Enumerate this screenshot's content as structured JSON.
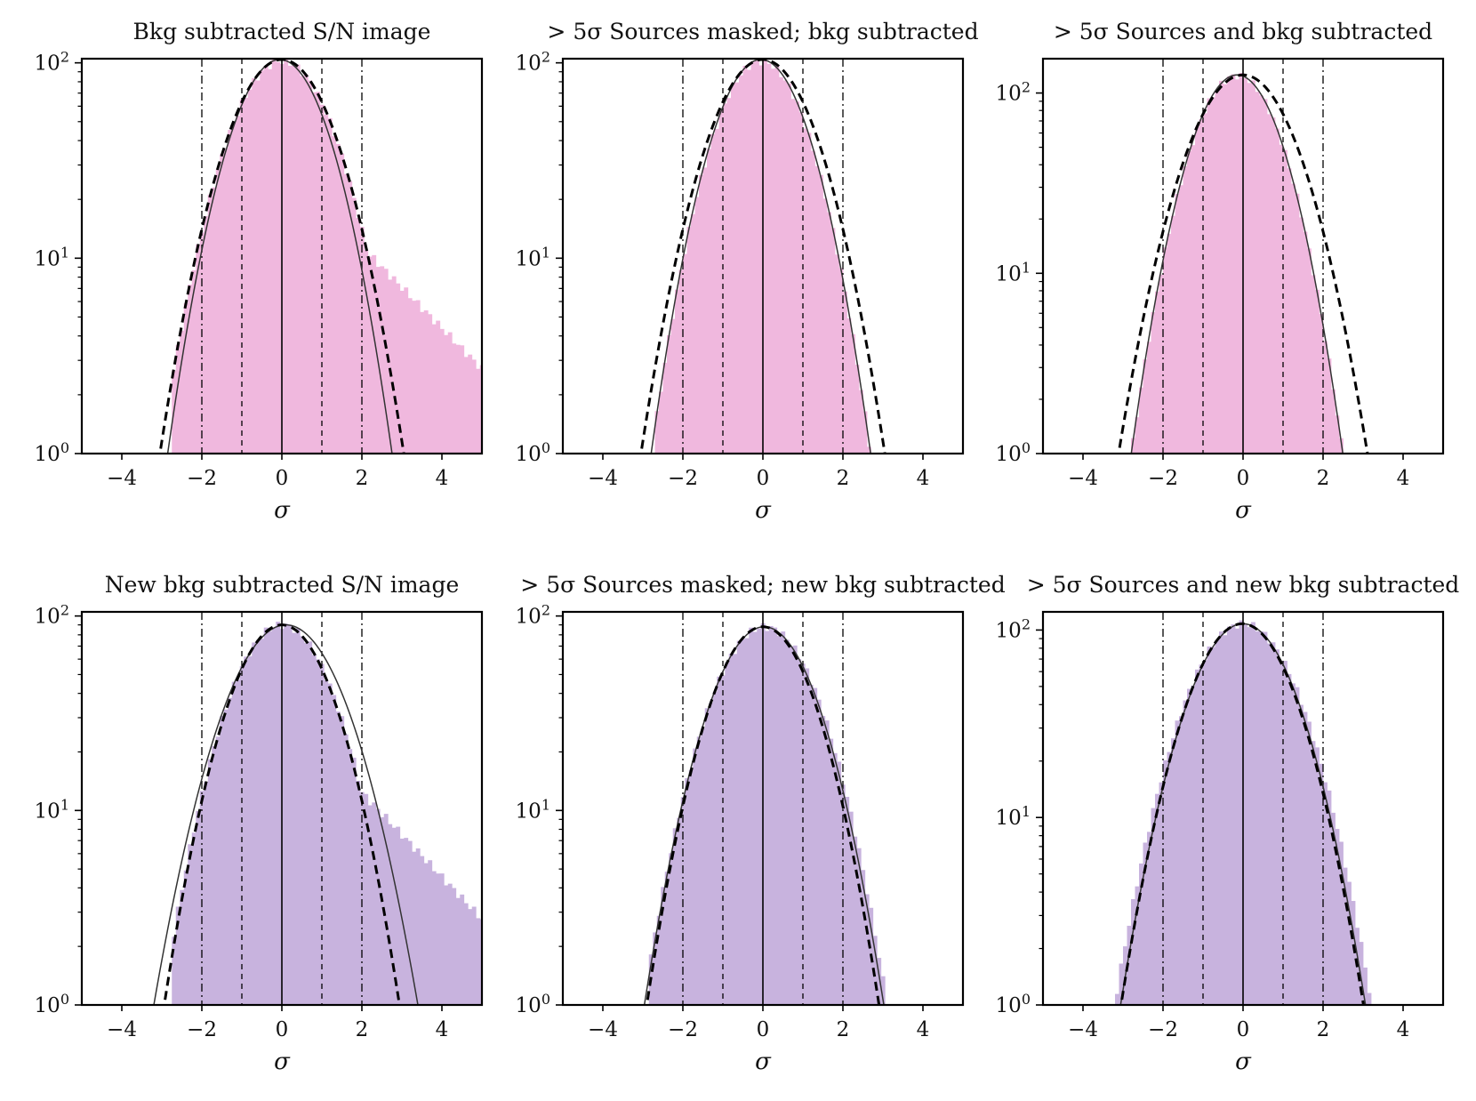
{
  "figure": {
    "colors": {
      "top_row_fill": "#f0b8de",
      "bottom_row_fill": "#c8b3de",
      "axes": "#000000",
      "gaussian_thin": "#333333",
      "gaussian_dashed": "#000000"
    }
  },
  "chart_data": [
    {
      "type": "histogram",
      "title": "Bkg subtracted S/N image",
      "xlabel": "σ",
      "ylabel": "",
      "xlim": [
        -5,
        5
      ],
      "ylim": [
        1,
        105
      ],
      "yscale": "log",
      "xticks": [
        -4,
        -2,
        0,
        2,
        4
      ],
      "xtick_labels": [
        "−4",
        "−2",
        "0",
        "2",
        "4"
      ],
      "ytick_labels": [
        "10⁰",
        "10¹",
        "10²"
      ],
      "fill_color": "#f0b8de",
      "histogram": {
        "bin_width": 0.1,
        "mu": 0,
        "sigma": 1.0,
        "peak": 102,
        "min_x": -2.75,
        "tail": {
          "start": 1.9,
          "amp": 12,
          "decay": 0.48
        }
      },
      "curves": [
        {
          "name": "gaussian-fit-thin",
          "style": "solid",
          "amplitude": 104,
          "mean": -0.05,
          "sigma": 0.92
        },
        {
          "name": "gaussian-fit-dashed",
          "style": "dashed",
          "amplitude": 104,
          "mean": 0.0,
          "sigma": 1.0
        }
      ],
      "vlines": [
        {
          "x": -2,
          "style": "dashdot"
        },
        {
          "x": -1,
          "style": "dashed"
        },
        {
          "x": 0,
          "style": "solid"
        },
        {
          "x": 1,
          "style": "dashed"
        },
        {
          "x": 2,
          "style": "dashdot"
        }
      ]
    },
    {
      "type": "histogram",
      "title": "> 5σ Sources masked; bkg subtracted",
      "xlabel": "σ",
      "ylabel": "",
      "xlim": [
        -5,
        5
      ],
      "ylim": [
        1,
        105
      ],
      "yscale": "log",
      "xticks": [
        -4,
        -2,
        0,
        2,
        4
      ],
      "xtick_labels": [
        "−4",
        "−2",
        "0",
        "2",
        "4"
      ],
      "ytick_labels": [
        "10⁰",
        "10¹",
        "10²"
      ],
      "fill_color": "#f0b8de",
      "histogram": {
        "bin_width": 0.1,
        "mu": -0.05,
        "sigma": 0.9,
        "peak": 102,
        "min_x": -2.7,
        "max_x": 2.75,
        "tail": null
      },
      "curves": [
        {
          "name": "gaussian-fit-thin",
          "style": "solid",
          "amplitude": 104,
          "mean": -0.05,
          "sigma": 0.9
        },
        {
          "name": "gaussian-fit-dashed",
          "style": "dashed",
          "amplitude": 104,
          "mean": 0.0,
          "sigma": 1.0
        }
      ],
      "vlines": [
        {
          "x": -2,
          "style": "dashdot"
        },
        {
          "x": -1,
          "style": "dashed"
        },
        {
          "x": 0,
          "style": "solid"
        },
        {
          "x": 1,
          "style": "dashed"
        },
        {
          "x": 2,
          "style": "dashdot"
        }
      ]
    },
    {
      "type": "histogram",
      "title": "> 5σ Sources and bkg subtracted",
      "xlabel": "σ",
      "ylabel": "",
      "xlim": [
        -5,
        5
      ],
      "ylim": [
        1,
        155
      ],
      "yscale": "log",
      "xticks": [
        -4,
        -2,
        0,
        2,
        4
      ],
      "xtick_labels": [
        "−4",
        "−2",
        "0",
        "2",
        "4"
      ],
      "ytick_labels": [
        "10⁰",
        "10¹",
        "10²"
      ],
      "fill_color": "#f0b8de",
      "histogram": {
        "bin_width": 0.1,
        "mu": -0.15,
        "sigma": 0.85,
        "peak": 125,
        "min_x": -3.0,
        "max_x": 2.75,
        "tail": null
      },
      "curves": [
        {
          "name": "gaussian-fit-thin",
          "style": "solid",
          "amplitude": 126,
          "mean": -0.15,
          "sigma": 0.85
        },
        {
          "name": "gaussian-fit-dashed",
          "style": "dashed",
          "amplitude": 126,
          "mean": 0.0,
          "sigma": 1.0
        }
      ],
      "vlines": [
        {
          "x": -2,
          "style": "dashdot"
        },
        {
          "x": -1,
          "style": "dashed"
        },
        {
          "x": 0,
          "style": "solid"
        },
        {
          "x": 1,
          "style": "dashed"
        },
        {
          "x": 2,
          "style": "dashdot"
        }
      ]
    },
    {
      "type": "histogram",
      "title": "New bkg subtracted S/N image",
      "xlabel": "σ",
      "ylabel": "",
      "xlim": [
        -5,
        5
      ],
      "ylim": [
        1,
        105
      ],
      "yscale": "log",
      "xticks": [
        -4,
        -2,
        0,
        2,
        4
      ],
      "xtick_labels": [
        "−4",
        "−2",
        "0",
        "2",
        "4"
      ],
      "ytick_labels": [
        "10⁰",
        "10¹",
        "10²"
      ],
      "fill_color": "#c8b3de",
      "histogram": {
        "bin_width": 0.1,
        "mu": 0,
        "sigma": 1.0,
        "peak": 90,
        "min_x": -2.75,
        "tail": {
          "start": 1.9,
          "amp": 13,
          "decay": 0.5
        }
      },
      "curves": [
        {
          "name": "gaussian-fit-thin",
          "style": "solid",
          "amplitude": 90,
          "mean": 0.1,
          "sigma": 1.1
        },
        {
          "name": "gaussian-fit-dashed",
          "style": "dashed",
          "amplitude": 90,
          "mean": 0.0,
          "sigma": 0.98
        }
      ],
      "vlines": [
        {
          "x": -2,
          "style": "dashdot"
        },
        {
          "x": -1,
          "style": "dashed"
        },
        {
          "x": 0,
          "style": "solid"
        },
        {
          "x": 1,
          "style": "dashed"
        },
        {
          "x": 2,
          "style": "dashdot"
        }
      ]
    },
    {
      "type": "histogram",
      "title": "> 5σ Sources masked; new bkg subtracted",
      "xlabel": "σ",
      "ylabel": "",
      "xlim": [
        -5,
        5
      ],
      "ylim": [
        1,
        105
      ],
      "yscale": "log",
      "xticks": [
        -4,
        -2,
        0,
        2,
        4
      ],
      "xtick_labels": [
        "−4",
        "−2",
        "0",
        "2",
        "4"
      ],
      "ytick_labels": [
        "10⁰",
        "10¹",
        "10²"
      ],
      "fill_color": "#c8b3de",
      "histogram": {
        "bin_width": 0.1,
        "mu": 0.05,
        "sigma": 1.02,
        "peak": 88,
        "min_x": -2.85,
        "max_x": 3.3,
        "tail": null
      },
      "curves": [
        {
          "name": "gaussian-fit-thin",
          "style": "solid",
          "amplitude": 88,
          "mean": 0.03,
          "sigma": 1.0
        },
        {
          "name": "gaussian-fit-dashed",
          "style": "dashed",
          "amplitude": 88,
          "mean": 0.0,
          "sigma": 0.97
        }
      ],
      "vlines": [
        {
          "x": -2,
          "style": "dashdot"
        },
        {
          "x": -1,
          "style": "dashed"
        },
        {
          "x": 0,
          "style": "solid"
        },
        {
          "x": 1,
          "style": "dashed"
        },
        {
          "x": 2,
          "style": "dashdot"
        }
      ]
    },
    {
      "type": "histogram",
      "title": "> 5σ Sources and new bkg subtracted",
      "xlabel": "σ",
      "ylabel": "",
      "xlim": [
        -5,
        5
      ],
      "ylim": [
        1,
        125
      ],
      "yscale": "log",
      "xticks": [
        -4,
        -2,
        0,
        2,
        4
      ],
      "xtick_labels": [
        "−4",
        "−2",
        "0",
        "2",
        "4"
      ],
      "ytick_labels": [
        "10⁰",
        "10¹",
        "10²"
      ],
      "fill_color": "#c8b3de",
      "histogram": {
        "bin_width": 0.1,
        "mu": 0,
        "sigma": 1.05,
        "peak": 108,
        "min_x": -3.6,
        "max_x": 3.6,
        "tail": null
      },
      "curves": [
        {
          "name": "gaussian-fit-thin",
          "style": "solid",
          "amplitude": 108,
          "mean": 0.0,
          "sigma": 1.0
        },
        {
          "name": "gaussian-fit-dashed",
          "style": "dashed",
          "amplitude": 108,
          "mean": -0.02,
          "sigma": 0.99
        }
      ],
      "vlines": [
        {
          "x": -2,
          "style": "dashdot"
        },
        {
          "x": -1,
          "style": "dashed"
        },
        {
          "x": 0,
          "style": "solid"
        },
        {
          "x": 1,
          "style": "dashed"
        },
        {
          "x": 2,
          "style": "dashdot"
        }
      ]
    }
  ]
}
